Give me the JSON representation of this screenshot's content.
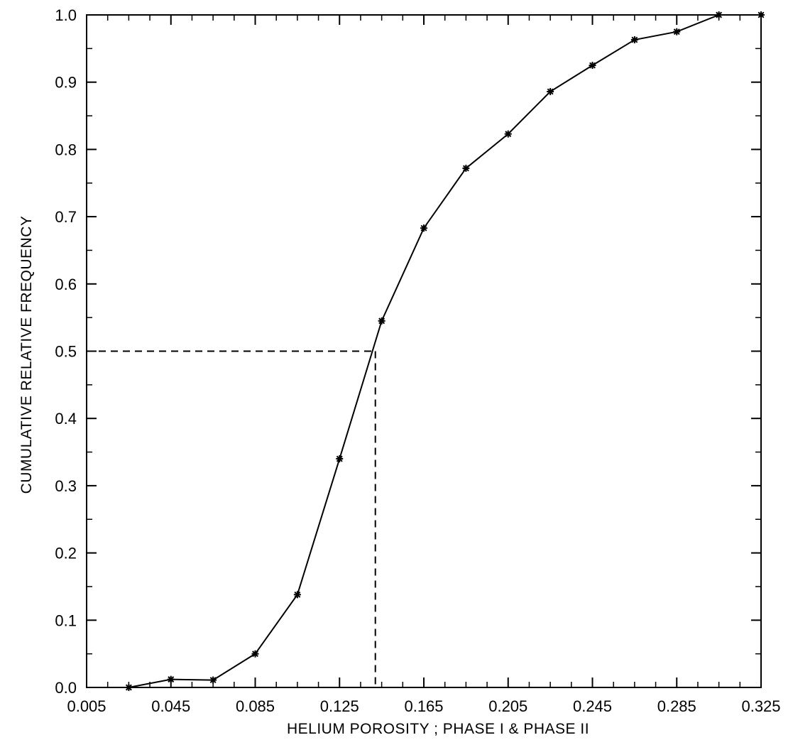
{
  "chart_data": {
    "type": "line",
    "xlabel": "HELIUM POROSITY ; PHASE I & PHASE II",
    "ylabel": "CUMULATIVE RELATIVE FREQUENCY",
    "xlim": [
      0.005,
      0.325
    ],
    "ylim": [
      0.0,
      1.0
    ],
    "x_ticks": [
      "0.005",
      "0.045",
      "0.085",
      "0.125",
      "0.165",
      "0.205",
      "0.245",
      "0.285",
      "0.325"
    ],
    "x_tick_values": [
      0.005,
      0.045,
      0.085,
      0.125,
      0.165,
      0.205,
      0.245,
      0.285,
      0.325
    ],
    "y_ticks": [
      "0.0",
      "0.1",
      "0.2",
      "0.3",
      "0.4",
      "0.5",
      "0.6",
      "0.7",
      "0.8",
      "0.9",
      "1.0"
    ],
    "y_tick_values": [
      0.0,
      0.1,
      0.2,
      0.3,
      0.4,
      0.5,
      0.6,
      0.7,
      0.8,
      0.9,
      1.0
    ],
    "x_minor_step": 0.01,
    "y_minor_step": 0.05,
    "grid": false,
    "marker": "asterisk",
    "series": [
      {
        "x": [
          0.025,
          0.045,
          0.065,
          0.085,
          0.105,
          0.125,
          0.145,
          0.165,
          0.185,
          0.205,
          0.225,
          0.245,
          0.265,
          0.285,
          0.305,
          0.325
        ],
        "y": [
          0.0,
          0.012,
          0.011,
          0.05,
          0.138,
          0.34,
          0.545,
          0.683,
          0.772,
          0.823,
          0.886,
          0.925,
          0.963,
          0.975,
          1.0,
          1.0
        ]
      }
    ],
    "reference_lines": {
      "median_y": 0.5,
      "median_x": 0.142
    }
  }
}
